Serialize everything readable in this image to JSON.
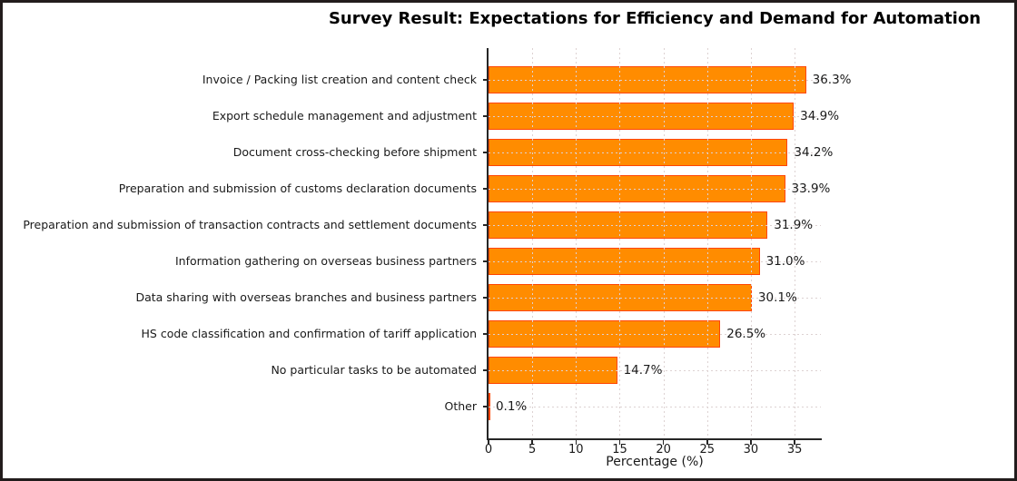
{
  "figure": {
    "background": "#ffffff",
    "border_color": "#221c1c"
  },
  "chart_data": {
    "type": "bar",
    "orientation": "horizontal",
    "title": "Survey Result: Expectations for Efficiency and Demand for Automation",
    "xlabel": "Percentage (%)",
    "ylabel": "",
    "categories": [
      "Invoice / Packing list creation and content check",
      "Export schedule management and adjustment",
      "Document cross-checking before shipment",
      "Preparation and submission of customs declaration documents",
      "Preparation and submission of transaction contracts and settlement documents",
      "Information gathering on overseas business partners",
      "Data sharing with overseas branches and business partners",
      "HS code classification and confirmation of tariff application",
      "No particular tasks to be automated",
      "Other"
    ],
    "values": [
      36.3,
      34.9,
      34.2,
      33.9,
      31.9,
      31.0,
      30.1,
      26.5,
      14.7,
      0.1
    ],
    "labels": [
      "36.3%",
      "34.9%",
      "34.2%",
      "33.9%",
      "31.9%",
      "31.0%",
      "30.1%",
      "26.5%",
      "14.7%",
      "0.1%"
    ],
    "xlim": [
      0,
      38
    ],
    "xticks": [
      0,
      5,
      10,
      15,
      20,
      25,
      30,
      35
    ],
    "grid": true,
    "grid_style": "dashed",
    "grid_color": "#ddd2d2",
    "bar_color": "#ff8c00",
    "bar_edge_color": "#ff4500",
    "legend_position": "none"
  }
}
